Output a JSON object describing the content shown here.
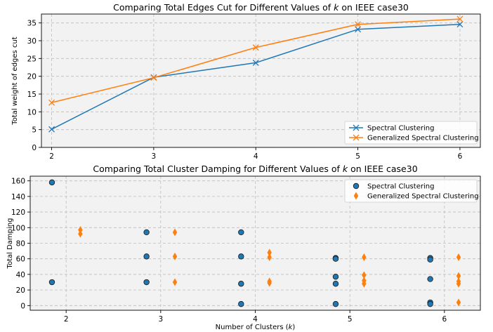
{
  "chart_data": [
    {
      "type": "line",
      "title": "Comparing Total Edges Cut for Different Values of k on IEEE case30",
      "title_pre": "Comparing Total Edges Cut for Different Values of ",
      "title_var": "k",
      "title_post": " on IEEE case30",
      "xlabel": "",
      "ylabel": "Total weight of edges cut",
      "x": [
        2,
        3,
        4,
        5,
        6
      ],
      "x_ticks": [
        "2",
        "3",
        "4",
        "5",
        "6"
      ],
      "xlim": [
        1.9,
        6.2
      ],
      "ylim": [
        0,
        37.5
      ],
      "y_ticks": [
        "0",
        "5",
        "10",
        "15",
        "20",
        "25",
        "30",
        "35"
      ],
      "grid": true,
      "legend_position": "lower-right",
      "series": [
        {
          "name": "Spectral Clustering",
          "color": "#1f77b4",
          "marker": "x",
          "values": [
            5.1,
            19.7,
            23.8,
            33.2,
            34.6
          ]
        },
        {
          "name": "Generalized Spectral Clustering",
          "color": "#ff7f0e",
          "marker": "x",
          "values": [
            12.6,
            19.6,
            28.1,
            34.6,
            36.1
          ]
        }
      ]
    },
    {
      "type": "scatter",
      "title": "Comparing Total Cluster Damping for Different Values of k on IEEE case30",
      "title_pre": "Comparing Total Cluster Damping for Different Values of ",
      "title_var": "k",
      "title_post": " on IEEE case30",
      "xlabel": "Number of Clusters (k)",
      "xlabel_pre": "Number of Clusters (",
      "xlabel_var": "k",
      "xlabel_post": ")",
      "ylabel": "Total Damping",
      "x_ticks": [
        "2",
        "3",
        "4",
        "5",
        "6"
      ],
      "xlim": [
        1.62,
        6.38
      ],
      "ylim": [
        -6,
        166
      ],
      "y_ticks": [
        "0",
        "20",
        "40",
        "60",
        "80",
        "100",
        "120",
        "140",
        "160"
      ],
      "grid": true,
      "legend_position": "upper-right",
      "series": [
        {
          "name": "Spectral Clustering",
          "color": "#1f77b4",
          "marker": "circle",
          "points": [
            [
              1.85,
              158
            ],
            [
              1.85,
              30
            ],
            [
              2.85,
              94
            ],
            [
              2.85,
              63
            ],
            [
              2.85,
              30
            ],
            [
              3.85,
              94
            ],
            [
              3.85,
              63
            ],
            [
              3.85,
              28
            ],
            [
              3.85,
              2
            ],
            [
              4.85,
              61
            ],
            [
              4.85,
              60
            ],
            [
              4.85,
              37
            ],
            [
              4.85,
              28
            ],
            [
              4.85,
              2
            ],
            [
              5.85,
              61
            ],
            [
              5.85,
              59
            ],
            [
              5.85,
              34
            ],
            [
              5.85,
              4
            ],
            [
              5.85,
              2
            ]
          ]
        },
        {
          "name": "Generalized Spectral Clustering",
          "color": "#ff7f0e",
          "marker": "diamond",
          "points": [
            [
              2.15,
              97
            ],
            [
              2.15,
              92
            ],
            [
              3.15,
              94
            ],
            [
              3.15,
              63
            ],
            [
              3.15,
              30
            ],
            [
              4.15,
              68
            ],
            [
              4.15,
              62
            ],
            [
              4.15,
              31
            ],
            [
              4.15,
              29
            ],
            [
              5.15,
              62
            ],
            [
              5.15,
              39
            ],
            [
              5.15,
              32
            ],
            [
              5.15,
              28
            ],
            [
              6.15,
              62
            ],
            [
              6.15,
              38
            ],
            [
              6.15,
              31
            ],
            [
              6.15,
              28
            ],
            [
              6.15,
              4
            ]
          ]
        }
      ]
    }
  ]
}
